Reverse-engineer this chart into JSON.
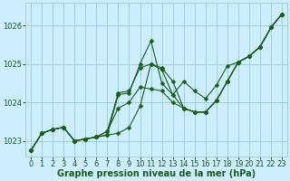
{
  "xlabel": "Graphe pression niveau de la mer (hPa)",
  "background_color": "#cceeff",
  "plot_bg_color": "#cceeff",
  "grid_color": "#99cccc",
  "line_color": "#1a5c1a",
  "ylim": [
    1022.6,
    1026.6
  ],
  "xlim": [
    -0.5,
    23.5
  ],
  "yticks": [
    1023,
    1024,
    1025,
    1026
  ],
  "xticks": [
    0,
    1,
    2,
    3,
    4,
    5,
    6,
    7,
    8,
    9,
    10,
    11,
    12,
    13,
    14,
    15,
    16,
    17,
    18,
    19,
    20,
    21,
    22,
    23
  ],
  "title_color": "#1a5c1a",
  "title_fontsize": 7,
  "tick_fontsize": 6,
  "marker_size": 2.5,
  "line_width": 0.8,
  "series": [
    [
      1022.75,
      1023.2,
      1023.3,
      1023.35,
      1023.0,
      1023.05,
      1023.1,
      1023.15,
      1023.2,
      1023.35,
      1023.9,
      1025.0,
      1024.9,
      1024.55,
      1023.85,
      1023.75,
      1023.75,
      1024.05,
      1024.55,
      1025.05,
      1025.2,
      1025.45,
      1025.95,
      1026.3
    ],
    [
      1022.75,
      1023.2,
      1023.3,
      1023.35,
      1023.0,
      1023.05,
      1023.1,
      1023.15,
      1024.2,
      1024.25,
      1025.0,
      1025.6,
      1024.5,
      1024.2,
      1024.55,
      1024.3,
      1024.1,
      1024.45,
      1024.95,
      1025.05,
      1025.2,
      1025.45,
      1025.95,
      1026.3
    ],
    [
      1022.75,
      1023.2,
      1023.3,
      1023.35,
      1023.0,
      1023.05,
      1023.1,
      1023.25,
      1024.25,
      1024.3,
      1024.9,
      1025.0,
      1024.85,
      1024.2,
      1023.85,
      1023.75,
      1023.75,
      1024.05,
      1024.55,
      1025.05,
      1025.2,
      1025.45,
      1025.95,
      1026.3
    ],
    [
      1022.75,
      1023.2,
      1023.3,
      1023.35,
      1023.0,
      1023.05,
      1023.1,
      1023.25,
      1023.85,
      1024.0,
      1024.4,
      1024.35,
      1024.3,
      1024.0,
      1023.85,
      1023.75,
      1023.75,
      1024.05,
      1024.55,
      1025.05,
      1025.2,
      1025.45,
      1025.95,
      1026.3
    ]
  ]
}
